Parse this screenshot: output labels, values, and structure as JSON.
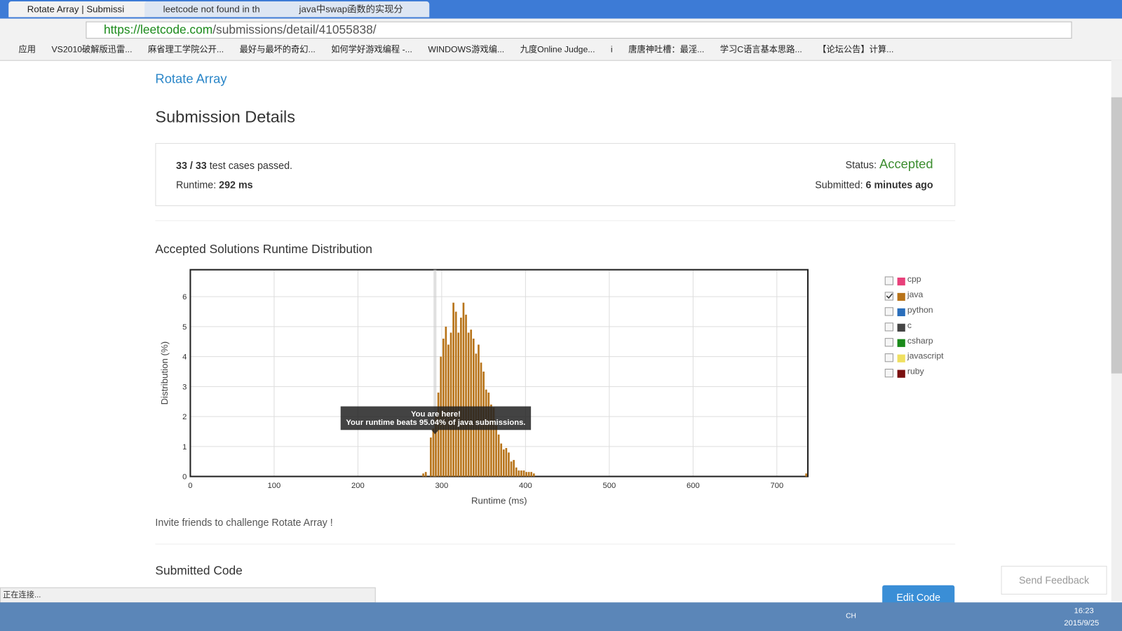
{
  "browser": {
    "tabs": [
      "Rotate Array | Submissi",
      "leetcode not found in th",
      "java中swap函数的实现分"
    ],
    "url_host": "https://leetcode.com",
    "url_path": "/submissions/detail/41055838/",
    "bookmarks": [
      "应用",
      "VS2010破解版迅雷...",
      "麻省理工学院公开...",
      "最好与最坏的奇幻...",
      "如何学好游戏编程 -...",
      "WINDOWS游戏编...",
      "九度Online Judge...",
      "i",
      "唐唐神吐槽：最淫...",
      "学习C语言基本思路...",
      "【论坛公告】计算..."
    ],
    "status": "正在连接..."
  },
  "page": {
    "problem": "Rotate Array",
    "heading": "Submission Details",
    "cases_passed": "33 / 33",
    "cases_text": "test cases passed.",
    "runtime_label": "Runtime:",
    "runtime": "292 ms",
    "status_label": "Status:",
    "status": "Accepted",
    "submitted_label": "Submitted:",
    "submitted": "6 minutes ago",
    "invite": "Invite friends to challenge Rotate Array !",
    "code_heading": "Submitted Code",
    "edit": "Edit Code",
    "feedback": "Send Feedback"
  },
  "taskbar": {
    "lang": "CH",
    "time": "16:23",
    "date": "2015/9/25"
  },
  "chart_data": {
    "type": "bar",
    "title": "Accepted Solutions Runtime Distribution",
    "x_label": "Runtime (ms)",
    "y_label": "Distribution (%)",
    "xlim": [
      0,
      737
    ],
    "ylim": [
      0,
      6.9
    ],
    "xticks": [
      0,
      100,
      200,
      300,
      400,
      500,
      600,
      700
    ],
    "yticks": [
      0,
      1,
      2,
      3,
      4,
      5,
      6
    ],
    "grid": true,
    "series": [
      {
        "name": "cpp",
        "color": "#e8407a",
        "checked": false
      },
      {
        "name": "java",
        "color": "#b8741a",
        "checked": true,
        "x": [
          278,
          281,
          287,
          290,
          293,
          296,
          299,
          302,
          305,
          308,
          311,
          314,
          317,
          320,
          323,
          326,
          329,
          332,
          335,
          338,
          341,
          344,
          347,
          350,
          353,
          356,
          359,
          362,
          365,
          368,
          371,
          374,
          377,
          380,
          383,
          386,
          389,
          392,
          395,
          398,
          401,
          404,
          407,
          410,
          735
        ],
        "values": [
          0.1,
          0.15,
          1.3,
          1.6,
          2.0,
          2.8,
          4.0,
          4.6,
          5.0,
          4.4,
          4.8,
          5.8,
          5.5,
          4.8,
          5.3,
          5.8,
          5.4,
          4.8,
          4.9,
          4.6,
          4.1,
          4.4,
          3.8,
          3.5,
          2.9,
          2.8,
          2.4,
          2.3,
          1.7,
          1.4,
          1.1,
          0.9,
          0.95,
          0.8,
          0.5,
          0.55,
          0.3,
          0.2,
          0.2,
          0.2,
          0.15,
          0.15,
          0.15,
          0.1,
          0.1
        ]
      },
      {
        "name": "python",
        "color": "#2a6ebb",
        "checked": false
      },
      {
        "name": "c",
        "color": "#444444",
        "checked": false
      },
      {
        "name": "csharp",
        "color": "#1a8a1a",
        "checked": false
      },
      {
        "name": "javascript",
        "color": "#f0e060",
        "checked": false
      },
      {
        "name": "ruby",
        "color": "#7a1010",
        "checked": false
      }
    ],
    "annotation": {
      "x": 292,
      "lines": [
        "You are here!",
        "Your runtime beats 95.04% of java submissions."
      ]
    }
  }
}
